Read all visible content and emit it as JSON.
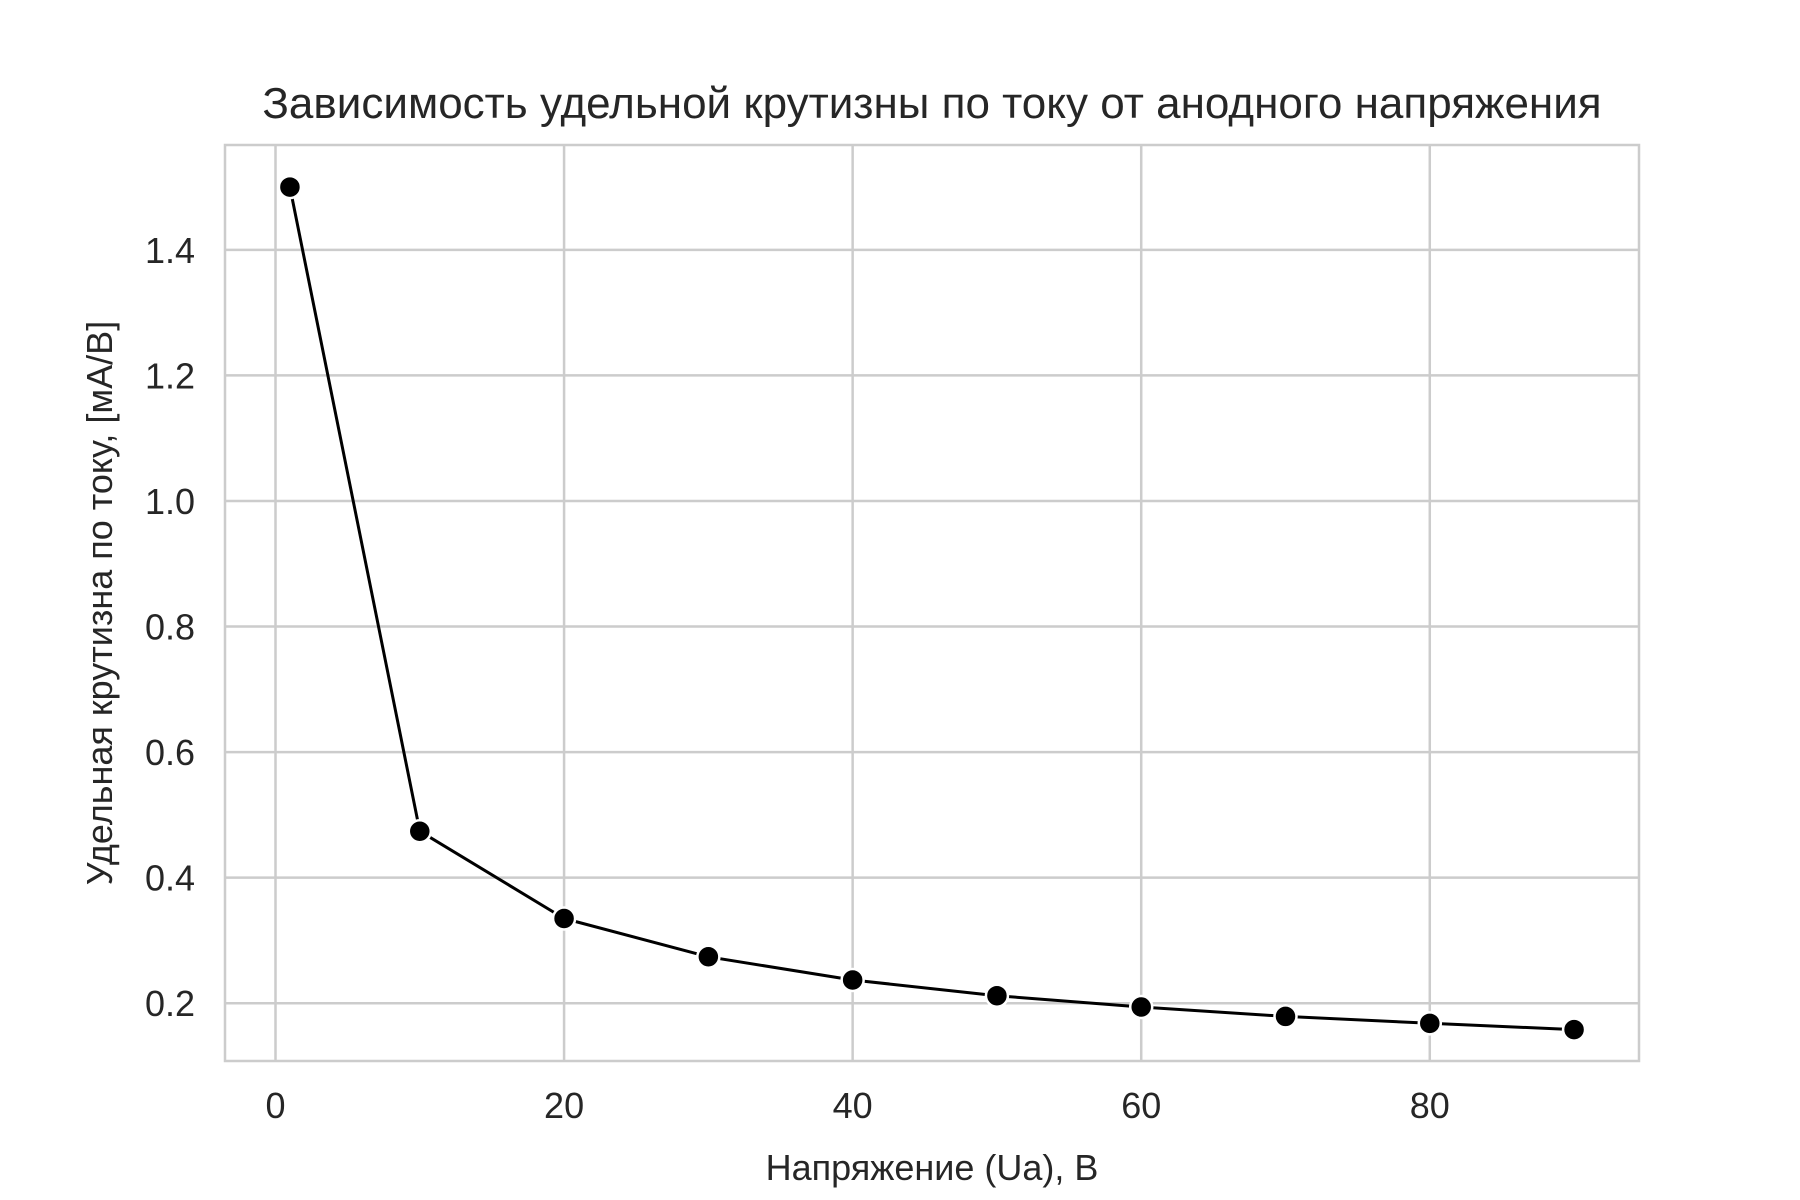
{
  "chart_data": {
    "type": "line",
    "title": "Зависимость удельной крутизны по току от анодного напряжения",
    "xlabel": "Напряжение (Ua), В",
    "ylabel": "Удельная крутизна по току, [мА/В]",
    "xlim": [
      -3.5,
      94.5
    ],
    "ylim": [
      0.108,
      1.567
    ],
    "xticks": [
      0,
      20,
      40,
      60,
      80
    ],
    "xtick_labels": [
      "0",
      "20",
      "40",
      "60",
      "80"
    ],
    "yticks": [
      0.2,
      0.4,
      0.6,
      0.8,
      1.0,
      1.2,
      1.4
    ],
    "ytick_labels": [
      "0.2",
      "0.4",
      "0.6",
      "0.8",
      "1.0",
      "1.2",
      "1.4"
    ],
    "grid": true,
    "series": [
      {
        "x": [
          1,
          10,
          20,
          30,
          40,
          50,
          60,
          70,
          80,
          90
        ],
        "y": [
          1.5,
          0.474,
          0.335,
          0.274,
          0.237,
          0.212,
          0.194,
          0.179,
          0.168,
          0.158
        ]
      }
    ],
    "colors": {
      "line": "#000000",
      "marker": "#000000",
      "marker_edge": "#ffffff",
      "grid": "#cccccc",
      "frame": "#cccccc",
      "text": "#262626"
    }
  }
}
